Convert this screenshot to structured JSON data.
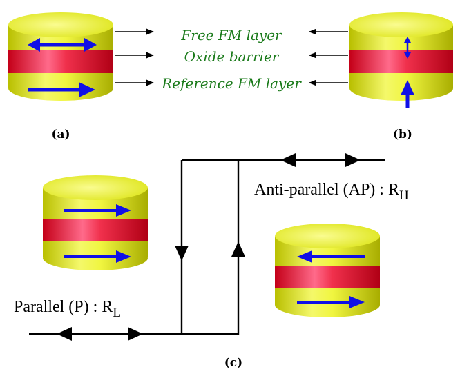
{
  "labels": {
    "free_layer": "Free FM layer",
    "oxide_barrier": "Oxide barrier",
    "reference_layer": "Reference FM layer",
    "panel_a": "(a)",
    "panel_b": "(b)",
    "panel_c": "(c)",
    "parallel_main": "Parallel (P) : R",
    "parallel_sub": "L",
    "antiparallel_main": "Anti-parallel (AP) : R",
    "antiparallel_sub": "H"
  },
  "colors": {
    "ferromagnet_yellow": "#e6f018",
    "barrier_red": "#e8102a",
    "arrow_blue": "#1010e6",
    "label_green": "#1a7a1a",
    "line_black": "#000000"
  },
  "icons": {
    "magnetization_arrow": "blue-arrow-icon",
    "pointer_arrow": "arrow-icon"
  }
}
